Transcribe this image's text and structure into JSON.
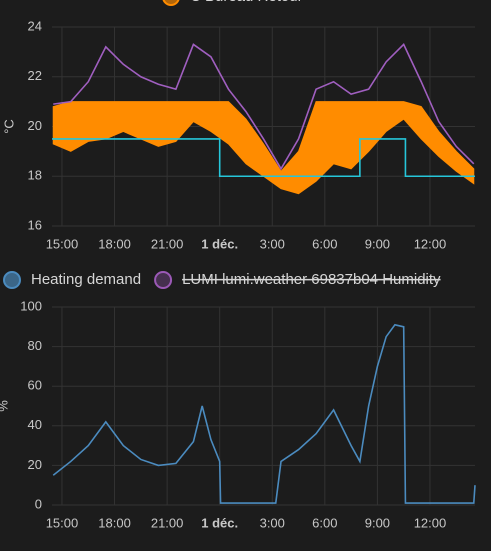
{
  "chart_data": [
    {
      "type": "line",
      "ylabel": "°C",
      "xlim": [
        -9.57,
        14.57
      ],
      "ylim": [
        16,
        24
      ],
      "yticks": [
        16,
        18,
        20,
        22,
        24
      ],
      "grid": true,
      "xticks": [
        {
          "value": -9,
          "label": "15:00"
        },
        {
          "value": -6,
          "label": "18:00"
        },
        {
          "value": -3,
          "label": "21:00"
        },
        {
          "value": 0,
          "label": "1 déc."
        },
        {
          "value": 3,
          "label": "3:00"
        },
        {
          "value": 6,
          "label": "6:00"
        },
        {
          "value": 9,
          "label": "9:00"
        },
        {
          "value": 12,
          "label": "12:00"
        }
      ],
      "x": [
        -9.5,
        -8.5,
        -7.5,
        -6.5,
        -5.5,
        -4.5,
        -3.5,
        -2.5,
        -1.5,
        -0.5,
        0.5,
        1.5,
        2.5,
        3.5,
        4.5,
        5.5,
        6.5,
        7.5,
        8.5,
        9.5,
        10.5,
        11.5,
        12.5,
        13.5,
        14.5
      ],
      "series": [
        {
          "name": "C Bureau Retour",
          "color": "#ff8c00",
          "values": [
            20.8,
            21,
            21,
            21,
            21,
            21,
            21,
            21,
            21,
            21,
            21,
            20.3,
            19.3,
            18.2,
            19,
            21,
            21,
            21,
            21,
            21,
            21,
            20.8,
            19.8,
            19,
            18.3
          ],
          "lows": [
            19.3,
            19,
            19.4,
            19.5,
            19.8,
            19.5,
            19.2,
            19.4,
            20.2,
            19.8,
            19.3,
            18.5,
            18,
            17.5,
            17.3,
            17.8,
            18.5,
            18.3,
            19,
            19.8,
            20.3,
            19.5,
            18.8,
            18.2,
            17.7
          ]
        },
        {
          "color": "#a05fc0",
          "values": [
            20.9,
            21,
            21.8,
            23.2,
            22.5,
            22,
            21.7,
            21.5,
            23.3,
            22.8,
            21.5,
            20.6,
            19.5,
            18.3,
            19.5,
            21.5,
            21.8,
            21.3,
            21.5,
            22.6,
            23.3,
            21.8,
            20.2,
            19.2,
            18.5
          ]
        },
        {
          "color": "#26c6da",
          "x": [
            -9.57,
            0,
            0,
            8,
            8,
            10.6,
            10.6,
            14.57
          ],
          "values": [
            19.5,
            19.5,
            18,
            18,
            19.5,
            19.5,
            18,
            18
          ]
        }
      ]
    },
    {
      "type": "line",
      "ylabel": "%",
      "xlim": [
        -9.57,
        14.57
      ],
      "ylim": [
        0,
        100
      ],
      "yticks": [
        0,
        20,
        40,
        60,
        80,
        100
      ],
      "grid": true,
      "xticks": [
        {
          "value": -9,
          "label": "15:00"
        },
        {
          "value": -6,
          "label": "18:00"
        },
        {
          "value": -3,
          "label": "21:00"
        },
        {
          "value": 0,
          "label": "1 déc."
        },
        {
          "value": 3,
          "label": "3:00"
        },
        {
          "value": 6,
          "label": "6:00"
        },
        {
          "value": 9,
          "label": "9:00"
        },
        {
          "value": 12,
          "label": "12:00"
        }
      ],
      "x": [
        -9.5,
        -8.5,
        -7.5,
        -6.5,
        -5.5,
        -4.5,
        -3.5,
        -2.5,
        -1.5,
        -1,
        -0.5,
        0,
        0.05,
        3.2,
        3.5,
        4.5,
        5.5,
        6.5,
        7.5,
        8,
        8.5,
        9,
        9.5,
        10,
        10.5,
        10.6,
        14.5,
        14.57
      ],
      "series": [
        {
          "name": "Heating demand",
          "color": "#4b8bbf",
          "values": [
            15,
            22,
            30,
            42,
            30,
            23,
            20,
            21,
            32,
            50,
            33,
            22,
            1,
            1,
            22,
            28,
            36,
            48,
            30,
            22,
            50,
            70,
            85,
            91,
            90,
            1,
            1,
            10
          ]
        },
        {
          "name": "LUMI lumi.weather 69837b04 Humidity",
          "color": "#9b59b6",
          "hidden": true
        }
      ]
    }
  ]
}
